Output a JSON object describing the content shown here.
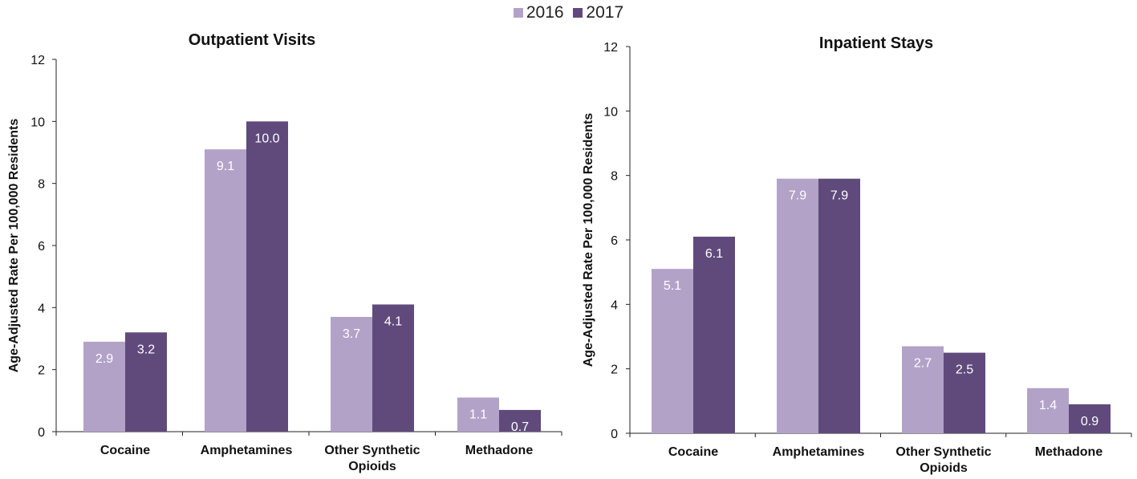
{
  "legend": {
    "items": [
      {
        "label": "2016",
        "color": "#b3a2c8"
      },
      {
        "label": "2017",
        "color": "#604a7b"
      }
    ]
  },
  "chart_data": [
    {
      "type": "bar",
      "title": "Outpatient Visits",
      "ylabel": "Age-Adjusted Rate Per 100,000 Residents",
      "xlabel": "",
      "ylim": [
        0,
        12
      ],
      "yticks": [
        0,
        2,
        4,
        6,
        8,
        10,
        12
      ],
      "categories": [
        [
          "Cocaine"
        ],
        [
          "Amphetamines"
        ],
        [
          "Other Synthetic",
          "Opioids"
        ],
        [
          "Methadone"
        ]
      ],
      "series": [
        {
          "name": "2016",
          "values": [
            2.9,
            9.1,
            3.7,
            1.1
          ],
          "labels": [
            "2.9",
            "9.1",
            "3.7",
            "1.1"
          ],
          "color": "#b3a2c8"
        },
        {
          "name": "2017",
          "values": [
            3.2,
            10.0,
            4.1,
            0.7
          ],
          "labels": [
            "3.2",
            "10.0",
            "4.1",
            "0.7"
          ],
          "color": "#604a7b"
        }
      ],
      "grid": false
    },
    {
      "type": "bar",
      "title": "Inpatient Stays",
      "ylabel": "Age-Adjusted Rate Per 100,000 Residents",
      "xlabel": "",
      "ylim": [
        0,
        12
      ],
      "yticks": [
        0,
        2,
        4,
        6,
        8,
        10,
        12
      ],
      "categories": [
        [
          "Cocaine"
        ],
        [
          "Amphetamines"
        ],
        [
          "Other Synthetic",
          "Opioids"
        ],
        [
          "Methadone"
        ]
      ],
      "series": [
        {
          "name": "2016",
          "values": [
            5.1,
            7.9,
            2.7,
            1.4
          ],
          "labels": [
            "5.1",
            "7.9",
            "2.7",
            "1.4"
          ],
          "color": "#b3a2c8"
        },
        {
          "name": "2017",
          "values": [
            6.1,
            7.9,
            2.5,
            0.9
          ],
          "labels": [
            "6.1",
            "7.9",
            "2.5",
            "0.9"
          ],
          "color": "#604a7b"
        }
      ],
      "grid": false
    }
  ]
}
